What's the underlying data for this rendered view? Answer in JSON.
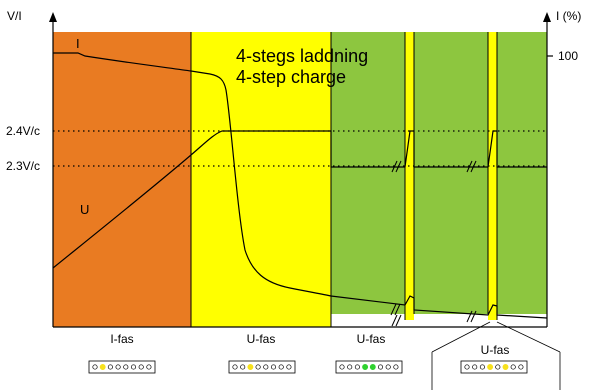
{
  "axes": {
    "left_label": "V/I",
    "right_label": "I (%)",
    "right_tick": "100",
    "level_high": "2.4V/c",
    "level_low": "2.3V/c"
  },
  "title": {
    "line1": "4-stegs laddning",
    "line2": "4-step charge"
  },
  "curves": {
    "current": "I",
    "voltage": "U"
  },
  "phases": [
    {
      "label": "I-fas",
      "color": "#e97b22",
      "indicator": "c●ccccccc",
      "lit": [
        1
      ],
      "lit_color": "#f7e11c"
    },
    {
      "label": "U-fas",
      "color": "#ffff00",
      "indicator": "cc●cccccc",
      "lit": [
        2
      ],
      "lit_color": "#f7e11c"
    },
    {
      "label": "U-fas",
      "color": "#8dc63f",
      "indicator": "ccc●●cccc",
      "lit": [
        3,
        4
      ],
      "lit_color": "#2fd12f"
    },
    {
      "label": "U-fas",
      "color": "#8dc63f",
      "indicator": "ccc●c●ccc",
      "lit": [
        3,
        5
      ],
      "lit_color": "#f7e11c"
    }
  ],
  "colors": {
    "i_phase": "#e97b22",
    "u_phase": "#ffff00",
    "float_phase": "#8dc63f",
    "pulse": "#ffff00",
    "line": "#000000"
  }
}
